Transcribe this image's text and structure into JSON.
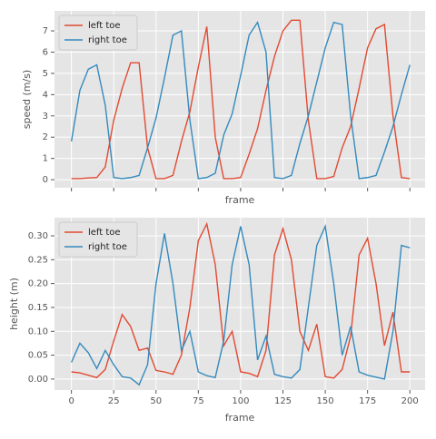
{
  "chart_data": [
    {
      "type": "line",
      "xlabel": "frame",
      "ylabel": "speed (m/s)",
      "xlim": [
        -10,
        209
      ],
      "ylim": [
        -0.38,
        7.94
      ],
      "xticks": [
        0,
        25,
        50,
        75,
        100,
        125,
        150,
        175,
        200
      ],
      "xticklabels": false,
      "yticks": [
        0,
        1,
        2,
        3,
        4,
        5,
        6,
        7
      ],
      "grid": true,
      "legend": "upper left",
      "x": [
        0,
        5,
        10,
        15,
        20,
        25,
        30,
        35,
        40,
        45,
        50,
        55,
        60,
        65,
        70,
        75,
        80,
        85,
        90,
        95,
        100,
        105,
        110,
        115,
        120,
        125,
        130,
        135,
        140,
        145,
        150,
        155,
        160,
        165,
        170,
        175,
        180,
        185,
        190,
        195,
        200
      ],
      "series": [
        {
          "name": "left toe",
          "color": "#E24A33",
          "values": [
            0.05,
            0.05,
            0.08,
            0.1,
            0.6,
            2.8,
            4.3,
            5.5,
            5.5,
            1.5,
            0.05,
            0.05,
            0.2,
            1.8,
            3.2,
            5.3,
            7.2,
            2.0,
            0.05,
            0.05,
            0.1,
            1.2,
            2.4,
            4.2,
            5.8,
            7.0,
            7.5,
            7.5,
            2.8,
            0.05,
            0.05,
            0.15,
            1.5,
            2.5,
            4.3,
            6.2,
            7.1,
            7.3,
            3.0,
            0.1,
            0.05
          ]
        },
        {
          "name": "right toe",
          "color": "#348ABD",
          "values": [
            1.8,
            4.2,
            5.2,
            5.4,
            3.5,
            0.1,
            0.05,
            0.1,
            0.2,
            1.5,
            2.9,
            4.8,
            6.8,
            7.0,
            2.8,
            0.05,
            0.1,
            0.3,
            2.1,
            3.1,
            4.9,
            6.8,
            7.4,
            6.0,
            0.1,
            0.05,
            0.2,
            1.7,
            3.0,
            4.6,
            6.2,
            7.4,
            7.3,
            3.0,
            0.05,
            0.1,
            0.2,
            1.3,
            2.5,
            4.0,
            5.4
          ]
        }
      ]
    },
    {
      "type": "line",
      "xlabel": "frame",
      "ylabel": "height (m)",
      "xlim": [
        -10,
        209
      ],
      "ylim": [
        -0.023,
        0.338
      ],
      "xticks": [
        0,
        25,
        50,
        75,
        100,
        125,
        150,
        175,
        200
      ],
      "xticklabels": true,
      "yticks": [
        {
          "value": 0,
          "label": "0.00"
        },
        {
          "value": 0.05,
          "label": "0.05"
        },
        {
          "value": 0.1,
          "label": "0.10"
        },
        {
          "value": 0.15,
          "label": "0.15"
        },
        {
          "value": 0.2,
          "label": "0.20"
        },
        {
          "value": 0.25,
          "label": "0.25"
        },
        {
          "value": 0.3,
          "label": "0.30"
        }
      ],
      "grid": true,
      "legend": "upper left",
      "x": [
        0,
        5,
        10,
        15,
        20,
        25,
        30,
        35,
        40,
        45,
        50,
        55,
        60,
        65,
        70,
        75,
        80,
        85,
        90,
        95,
        100,
        105,
        110,
        115,
        120,
        125,
        130,
        135,
        140,
        145,
        150,
        155,
        160,
        165,
        170,
        175,
        180,
        185,
        190,
        195,
        200
      ],
      "series": [
        {
          "name": "left toe",
          "color": "#E24A33",
          "values": [
            0.015,
            0.013,
            0.008,
            0.003,
            0.02,
            0.08,
            0.135,
            0.11,
            0.06,
            0.065,
            0.018,
            0.015,
            0.01,
            0.05,
            0.15,
            0.29,
            0.325,
            0.24,
            0.07,
            0.1,
            0.015,
            0.012,
            0.005,
            0.06,
            0.26,
            0.315,
            0.25,
            0.1,
            0.06,
            0.115,
            0.005,
            0.002,
            0.02,
            0.09,
            0.26,
            0.295,
            0.2,
            0.07,
            0.14,
            0.015,
            0.015
          ]
        },
        {
          "name": "right toe",
          "color": "#348ABD",
          "values": [
            0.035,
            0.075,
            0.055,
            0.022,
            0.06,
            0.03,
            0.005,
            0.002,
            -0.012,
            0.03,
            0.2,
            0.305,
            0.2,
            0.06,
            0.1,
            0.015,
            0.007,
            0.003,
            0.08,
            0.24,
            0.32,
            0.24,
            0.04,
            0.09,
            0.01,
            0.005,
            0.002,
            0.02,
            0.15,
            0.28,
            0.32,
            0.2,
            0.05,
            0.11,
            0.015,
            0.008,
            0.004,
            0.0,
            0.1,
            0.28,
            0.275
          ]
        }
      ]
    }
  ]
}
